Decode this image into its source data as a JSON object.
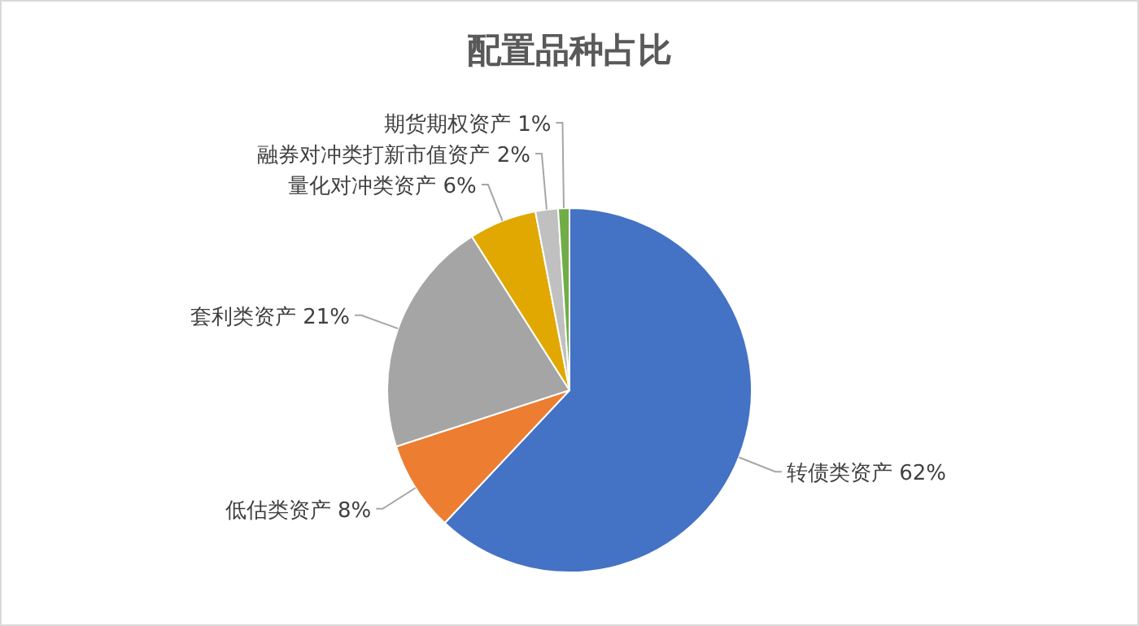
{
  "chart_data": {
    "type": "pie",
    "title": "配置品种占比",
    "categories": [
      "转债类资产",
      "低估类资产",
      "套利类资产",
      "量化对冲类资产",
      "融券对冲类打新市值资产",
      "期货期权资产"
    ],
    "values": [
      62,
      8,
      21,
      6,
      2,
      1
    ],
    "value_labels": [
      "62%",
      "8%",
      "21%",
      "6%",
      "2%",
      "1%"
    ],
    "colors": [
      "#4472c4",
      "#ed7d31",
      "#a5a5a5",
      "#e0a800",
      "#c0c0c0",
      "#70ad47"
    ]
  }
}
